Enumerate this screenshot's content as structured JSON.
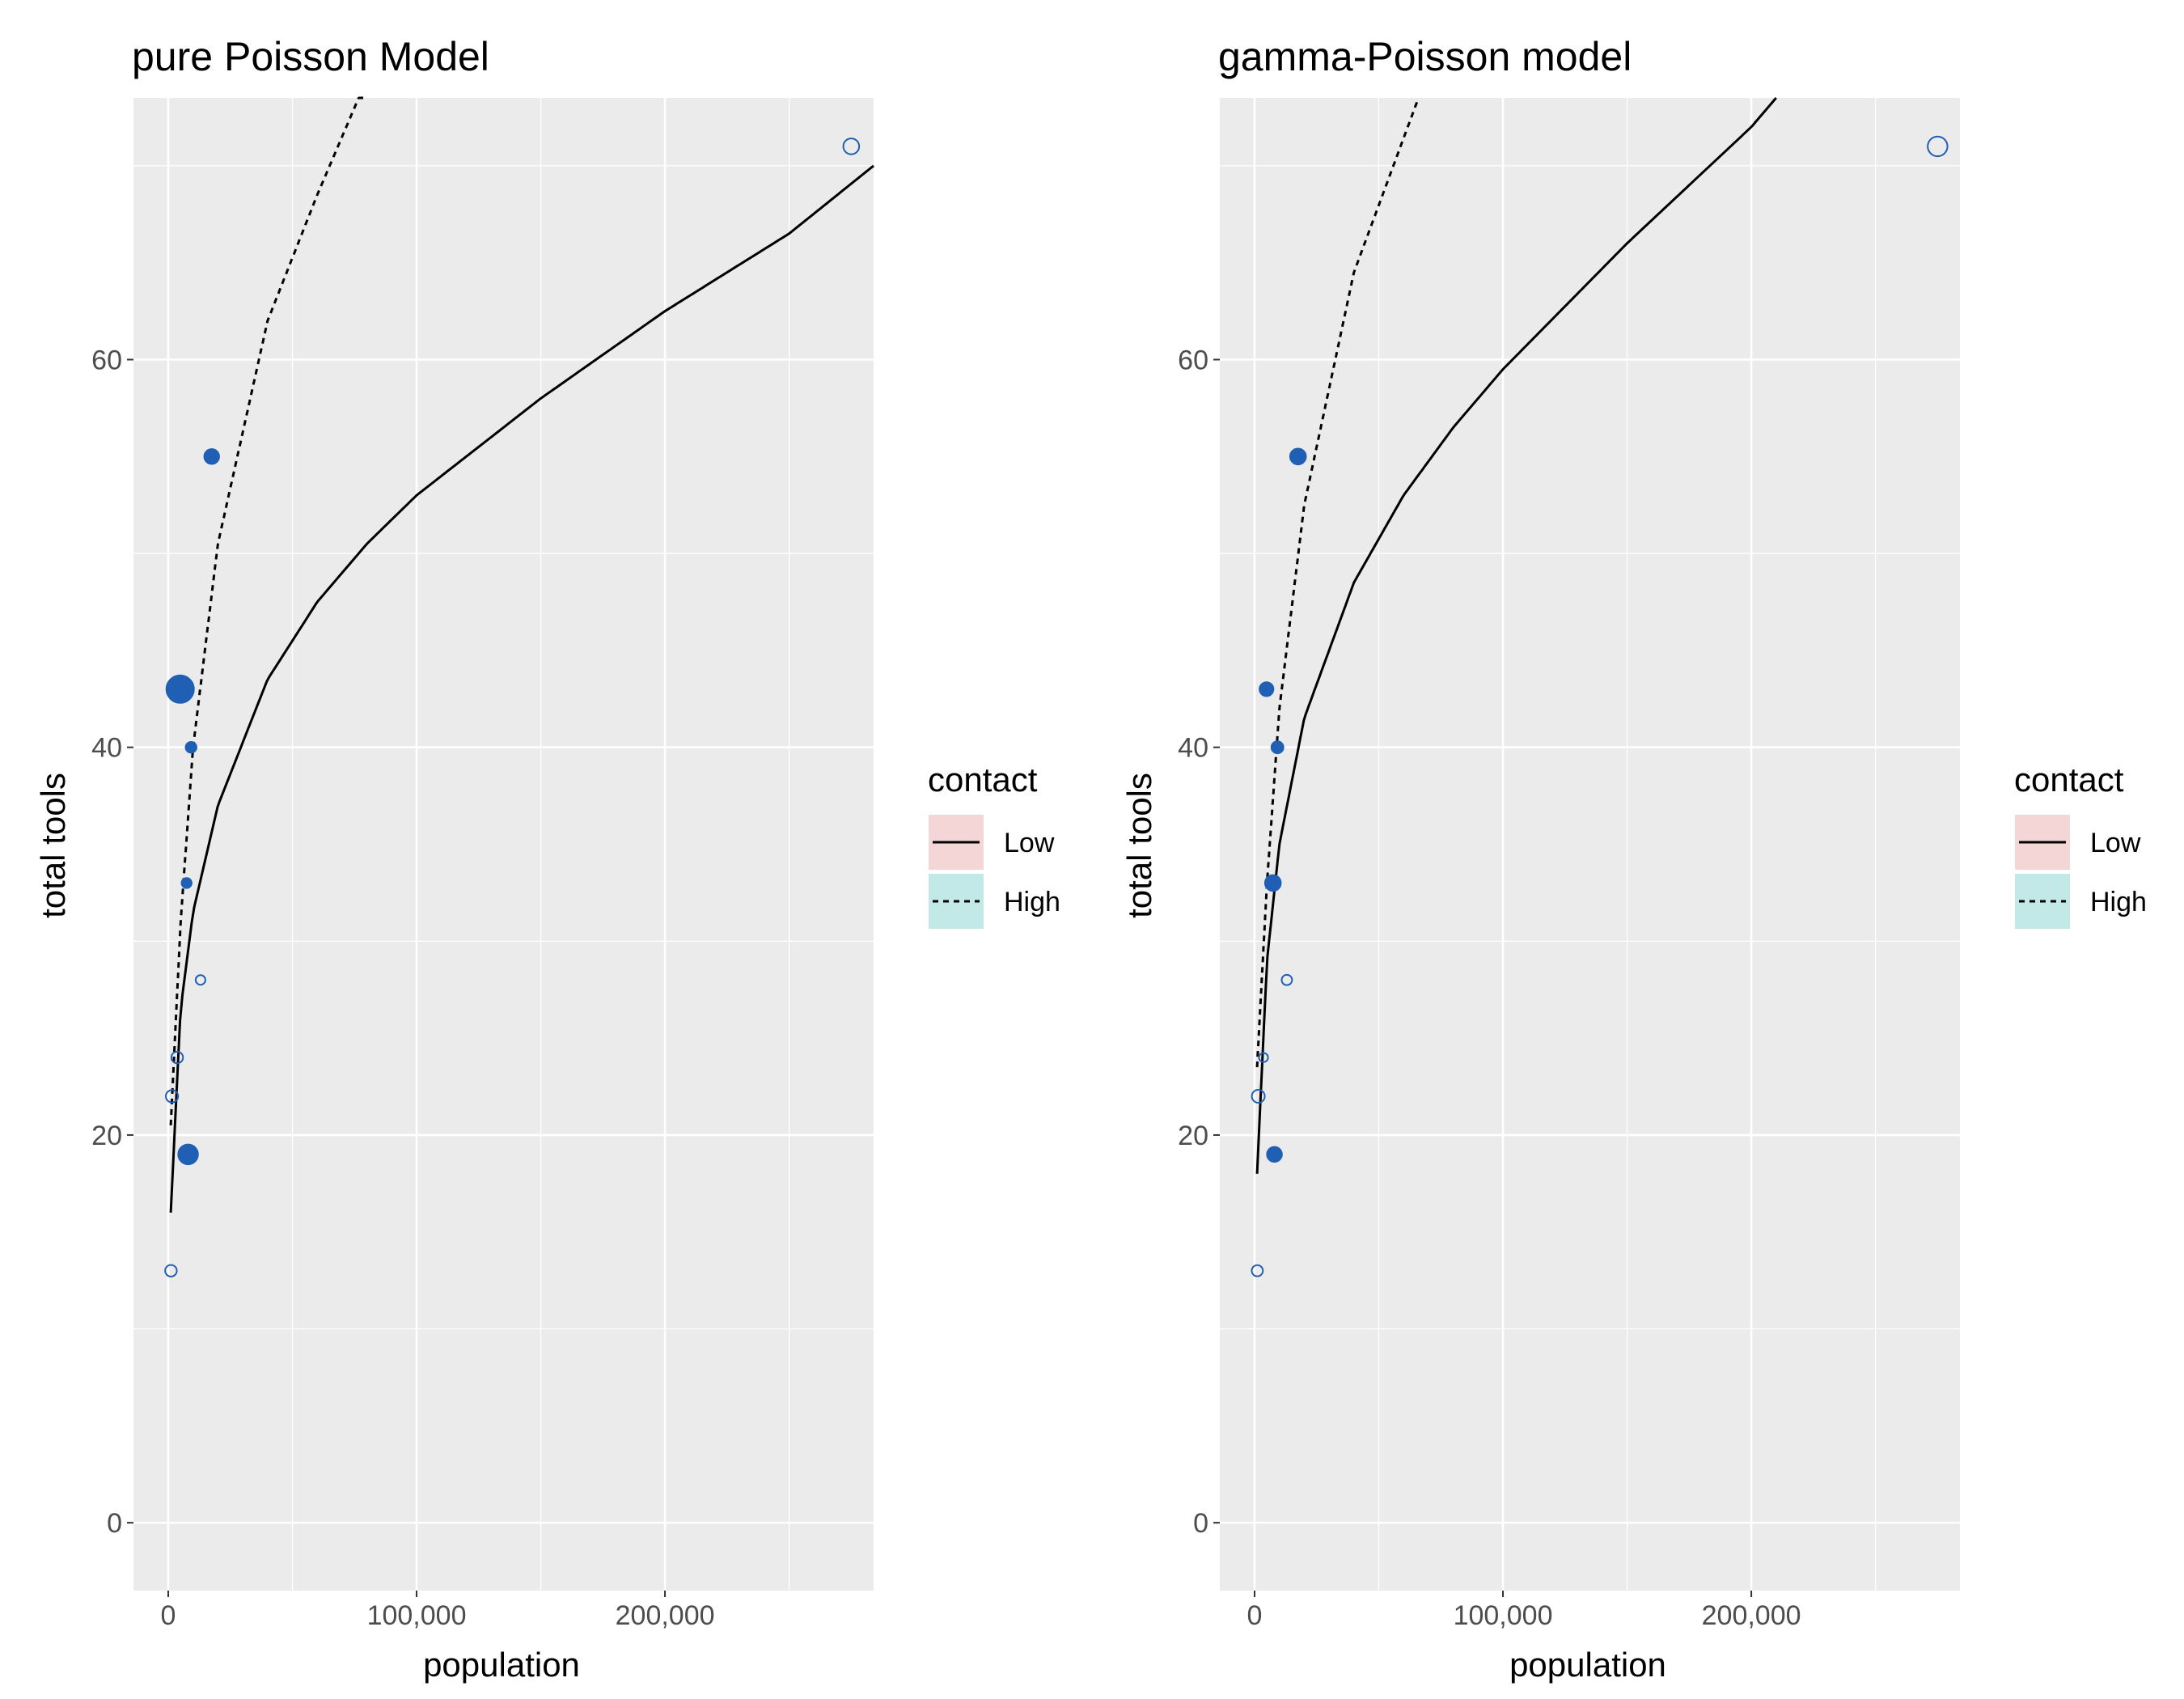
{
  "chart_data": [
    {
      "type": "scatter",
      "title": "pure Poisson Model",
      "xlabel": "population",
      "ylabel": "total tools",
      "xlim": [
        -14000,
        284000
      ],
      "ylim": [
        -3.5,
        73.5
      ],
      "x_ticks": [
        0,
        100000,
        200000
      ],
      "x_tick_labels": [
        "0",
        "100,000",
        "200,000"
      ],
      "y_ticks": [
        0,
        20,
        40,
        60
      ],
      "y_tick_labels": [
        "0",
        "20",
        "40",
        "60"
      ],
      "grid": true,
      "legend": {
        "title": "contact",
        "placement": "right",
        "entries": [
          {
            "label": "Low",
            "linetype": "solid",
            "fill": "#f4d6d6"
          },
          {
            "label": "High",
            "linetype": "dashed",
            "fill": "#c2e8e8"
          }
        ]
      },
      "point_color": "#1f5fb4",
      "points": [
        {
          "x": 1100,
          "y": 13,
          "contact": "Low",
          "size": 0.18
        },
        {
          "x": 1500,
          "y": 22,
          "contact": "Low",
          "size": 0.22
        },
        {
          "x": 3600,
          "y": 24,
          "contact": "Low",
          "size": 0.18
        },
        {
          "x": 4800,
          "y": 43,
          "contact": "High",
          "size": 1.0
        },
        {
          "x": 7400,
          "y": 33,
          "contact": "High",
          "size": 0.1
        },
        {
          "x": 8000,
          "y": 19,
          "contact": "High",
          "size": 0.6
        },
        {
          "x": 9200,
          "y": 40,
          "contact": "High",
          "size": 0.14
        },
        {
          "x": 13000,
          "y": 28,
          "contact": "Low",
          "size": 0.08
        },
        {
          "x": 17500,
          "y": 55,
          "contact": "High",
          "size": 0.35
        },
        {
          "x": 275000,
          "y": 71,
          "contact": "Low",
          "size": 0.4
        }
      ],
      "curves": [
        {
          "name": "Low",
          "linetype": "solid",
          "x_max": 284000,
          "x": [
            1000,
            5000,
            10000,
            20000,
            40000,
            60000,
            80000,
            100000,
            150000,
            200000,
            250000,
            284000
          ],
          "y": [
            16,
            26.5,
            31.5,
            37,
            43.5,
            47.5,
            50.5,
            53,
            58,
            62.5,
            66.5,
            70
          ]
        },
        {
          "name": "High",
          "linetype": "dashed",
          "x_max": 80000,
          "x": [
            1000,
            5000,
            10000,
            20000,
            40000,
            60000,
            80000
          ],
          "y": [
            20.5,
            31,
            40,
            50.5,
            62,
            68.5,
            74.5
          ]
        }
      ]
    },
    {
      "type": "scatter",
      "title": "gamma-Poisson model",
      "xlabel": "population",
      "ylabel": "total tools",
      "xlim": [
        -14000,
        284000
      ],
      "ylim": [
        -3.5,
        73.5
      ],
      "x_ticks": [
        0,
        100000,
        200000
      ],
      "x_tick_labels": [
        "0",
        "100,000",
        "200,000"
      ],
      "y_ticks": [
        0,
        20,
        40,
        60
      ],
      "y_tick_labels": [
        "0",
        "20",
        "40",
        "60"
      ],
      "grid": true,
      "legend": {
        "title": "contact",
        "placement": "right",
        "entries": [
          {
            "label": "Low",
            "linetype": "solid",
            "fill": "#f4d6d6"
          },
          {
            "label": "High",
            "linetype": "dashed",
            "fill": "#c2e8e8"
          }
        ]
      },
      "point_color": "#1f5fb4",
      "points": [
        {
          "x": 1100,
          "y": 13,
          "contact": "Low",
          "size": 0.16
        },
        {
          "x": 1500,
          "y": 22,
          "contact": "Low",
          "size": 0.25
        },
        {
          "x": 3600,
          "y": 24,
          "contact": "Low",
          "size": 0.05
        },
        {
          "x": 4800,
          "y": 43,
          "contact": "High",
          "size": 0.3
        },
        {
          "x": 7400,
          "y": 33,
          "contact": "High",
          "size": 0.4
        },
        {
          "x": 8000,
          "y": 19,
          "contact": "High",
          "size": 0.35
        },
        {
          "x": 9200,
          "y": 40,
          "contact": "High",
          "size": 0.2
        },
        {
          "x": 13000,
          "y": 28,
          "contact": "Low",
          "size": 0.12
        },
        {
          "x": 17500,
          "y": 55,
          "contact": "High",
          "size": 0.4
        },
        {
          "x": 275000,
          "y": 71,
          "contact": "Low",
          "size": 0.6
        }
      ],
      "curves": [
        {
          "name": "Low",
          "linetype": "solid",
          "x_max": 210000,
          "x": [
            1000,
            5000,
            10000,
            20000,
            40000,
            60000,
            80000,
            100000,
            150000,
            200000,
            210000
          ],
          "y": [
            18,
            29,
            35,
            41.5,
            48.5,
            53,
            56.5,
            59.5,
            66,
            72,
            73.5
          ]
        },
        {
          "name": "High",
          "linetype": "dashed",
          "x_max": 66000,
          "x": [
            1000,
            5000,
            10000,
            20000,
            40000,
            66000
          ],
          "y": [
            23.5,
            33,
            42,
            52.5,
            64.5,
            73.5
          ]
        }
      ]
    }
  ]
}
